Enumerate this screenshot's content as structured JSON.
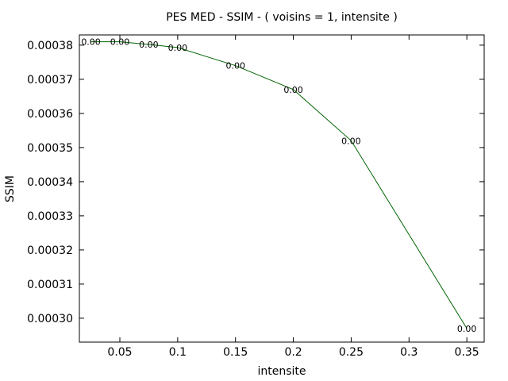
{
  "chart_data": {
    "type": "line",
    "title": "PES MED - SSIM - ( voisins = 1, intensite )",
    "xlabel": "intensite",
    "ylabel": "SSIM",
    "xlim": [
      0.015,
      0.365
    ],
    "ylim": [
      0.000293,
      0.000383
    ],
    "x_ticks": [
      0.05,
      0.1,
      0.15,
      0.2,
      0.25,
      0.3,
      0.35
    ],
    "x_tick_labels": [
      "0.05",
      "0.1",
      "0.15",
      "0.2",
      "0.25",
      "0.3",
      "0.35"
    ],
    "y_ticks": [
      0.0003,
      0.00031,
      0.00032,
      0.00033,
      0.00034,
      0.00035,
      0.00036,
      0.00037,
      0.00038
    ],
    "y_tick_labels": [
      "0.00030",
      "0.00031",
      "0.00032",
      "0.00033",
      "0.00034",
      "0.00035",
      "0.00036",
      "0.00037",
      "0.00038"
    ],
    "grid": false,
    "legend": "none",
    "line_color": "#006400",
    "series": [
      {
        "x": [
          0.025,
          0.05,
          0.075,
          0.1,
          0.15,
          0.2,
          0.25,
          0.35
        ],
        "y": [
          0.000381,
          0.000381,
          0.0003802,
          0.0003793,
          0.000374,
          0.000367,
          0.000352,
          0.000297
        ],
        "labels": [
          "0.00",
          "0.00",
          "0.00",
          "0.00",
          "0.00",
          "0.00",
          "0.00",
          "0.00"
        ]
      }
    ]
  }
}
